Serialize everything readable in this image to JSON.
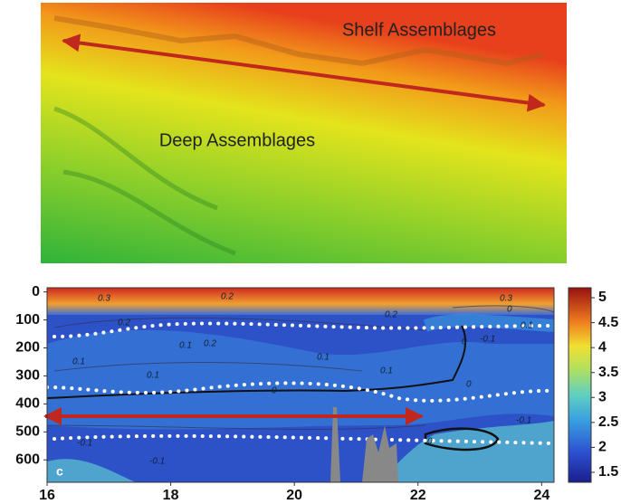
{
  "image_panel": {
    "labels": [
      "Shelf Assemblages",
      "Deep Assemblages"
    ]
  },
  "chart_data": {
    "type": "contour",
    "panel_label": "c",
    "xlim": [
      16,
      24.2
    ],
    "xticks": [
      16,
      18,
      20,
      22,
      24
    ],
    "ylim": [
      -15,
      680
    ],
    "yticks": [
      0,
      100,
      200,
      300,
      400,
      500,
      600
    ],
    "y_inverted": true,
    "clim": [
      1.3,
      5.2
    ],
    "cticks": [
      1.5,
      2,
      2.5,
      3,
      3.5,
      4,
      4.5,
      5
    ],
    "contour_labels": [
      "0.3",
      "0.2",
      "0.3",
      "0.2",
      "0.2",
      "0.1",
      "0.2",
      "0.1",
      "0.1",
      "0.1",
      "0.1",
      "0",
      "0",
      "0",
      "-0.1",
      "-0.1",
      "-0.1",
      "-0.1",
      "0",
      "0.1",
      "0"
    ]
  }
}
